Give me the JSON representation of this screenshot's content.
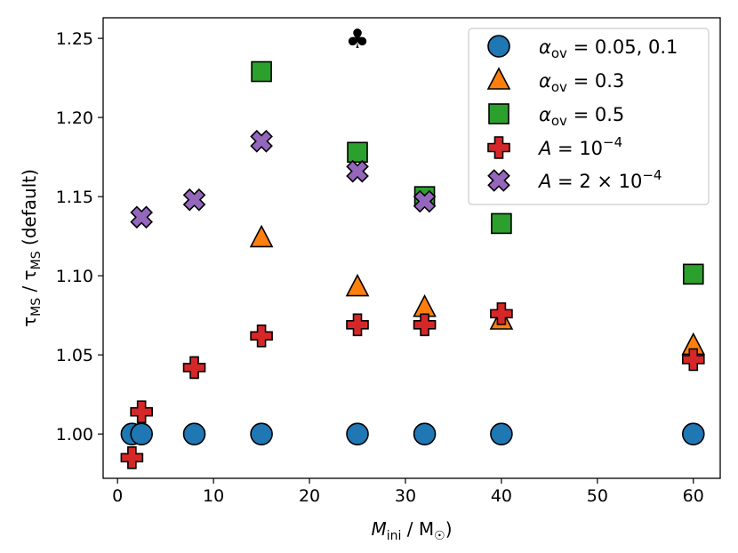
{
  "chart_data": {
    "type": "scatter",
    "xlabel": "M_ini / M_sun",
    "ylabel": "tau_MS / tau_MS (default)",
    "xlim": [
      -1.5,
      62.8
    ],
    "ylim": [
      0.972,
      1.263
    ],
    "xticks": [
      0,
      10,
      20,
      30,
      40,
      50,
      60
    ],
    "yticks": [
      1.0,
      1.05,
      1.1,
      1.15,
      1.2,
      1.25
    ],
    "ytick_labels": [
      "1.00",
      "1.05",
      "1.10",
      "1.15",
      "1.20",
      "1.25"
    ],
    "legend_position": "top-right",
    "series": [
      {
        "name": "α_ov = 0.05, 0.1",
        "label_parts": [
          "α",
          "ov",
          " = 0.05, 0.1"
        ],
        "marker": "circle",
        "color": "#1f77b4",
        "x": [
          1.5,
          2.5,
          8,
          15,
          25,
          32,
          40,
          60
        ],
        "y": [
          1.0,
          1.0,
          1.0,
          1.0,
          1.0,
          1.0,
          1.0,
          1.0
        ]
      },
      {
        "name": "α_ov = 0.3",
        "label_parts": [
          "α",
          "ov",
          " = 0.3"
        ],
        "marker": "triangle",
        "color": "#ff7f0e",
        "x": [
          15,
          25,
          32,
          40,
          60
        ],
        "y": [
          1.124,
          1.093,
          1.08,
          1.072,
          1.056
        ]
      },
      {
        "name": "α_ov = 0.5",
        "label_parts": [
          "α",
          "ov",
          " = 0.5"
        ],
        "marker": "square",
        "color": "#2ca02c",
        "x": [
          15,
          25,
          32,
          40,
          60
        ],
        "y": [
          1.229,
          1.178,
          1.15,
          1.133,
          1.101
        ]
      },
      {
        "name": "A = 10^-4",
        "label_parts": [
          "A = 10",
          "−4"
        ],
        "marker": "plus",
        "color": "#d62728",
        "x": [
          1.5,
          2.5,
          8,
          15,
          25,
          32,
          40,
          60
        ],
        "y": [
          0.985,
          1.014,
          1.042,
          1.062,
          1.069,
          1.069,
          1.076,
          1.047
        ]
      },
      {
        "name": "A = 2 × 10^-4",
        "label_parts": [
          "A = 2 × 10",
          "−4"
        ],
        "marker": "x",
        "color": "#9467bd",
        "x": [
          2.5,
          8,
          15,
          25,
          32
        ],
        "y": [
          1.137,
          1.148,
          1.185,
          1.166,
          1.147
        ]
      }
    ],
    "annotations": [
      {
        "text": "♣",
        "x": 25,
        "y": 1.25
      }
    ]
  }
}
